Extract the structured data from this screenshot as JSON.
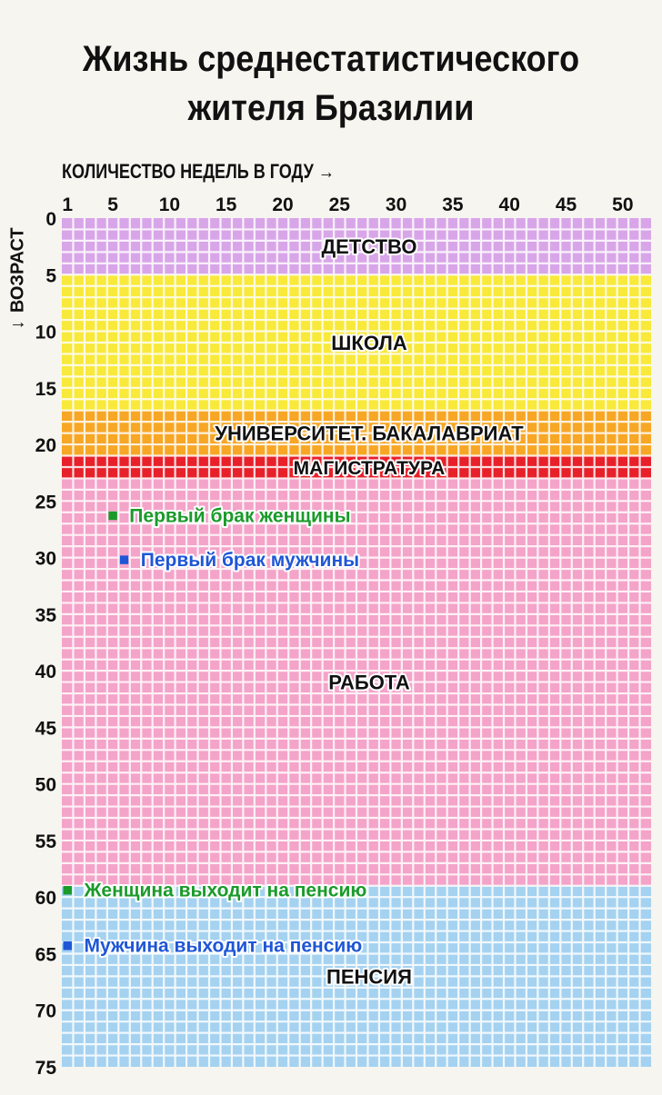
{
  "title_line1": "Жизнь среднестатистического",
  "title_line2": "жителя Бразилии",
  "chart_data": {
    "type": "heatmap",
    "xlabel": "КОЛИЧЕСТВО НЕДЕЛЬ В ГОДУ",
    "xlabel_arrow": "→",
    "ylabel": "ВОЗРАСТ",
    "ylabel_arrow": "←",
    "x_range": [
      1,
      52
    ],
    "y_range": [
      0,
      75
    ],
    "x_ticks": [
      1,
      5,
      10,
      15,
      20,
      25,
      30,
      35,
      40,
      45,
      50
    ],
    "y_ticks": [
      0,
      5,
      10,
      15,
      20,
      25,
      30,
      35,
      40,
      45,
      50,
      55,
      60,
      65,
      70,
      75
    ],
    "periods": [
      {
        "label": "ДЕТСТВО",
        "start_age": 0,
        "end_age": 5,
        "color": "#d8a6e8"
      },
      {
        "label": "ШКОЛА",
        "start_age": 5,
        "end_age": 17,
        "color": "#f8e93a"
      },
      {
        "label": "УНИВЕРСИТЕТ. БАКАЛАВРИАТ",
        "start_age": 17,
        "end_age": 21,
        "color": "#f7a725"
      },
      {
        "label": "МАГИСТРАТУРА",
        "start_age": 21,
        "end_age": 23,
        "color": "#e8202a"
      },
      {
        "label": "РАБОТА",
        "start_age": 23,
        "end_age": 59,
        "color": "#f4a3c9"
      },
      {
        "label": "ПЕНСИЯ",
        "start_age": 59,
        "end_age": 75,
        "color": "#a5d2f0"
      }
    ],
    "events": [
      {
        "label": "Первый брак женщины",
        "age": 26.3,
        "week": 5,
        "color": "#1a9a2a"
      },
      {
        "label": "Первый брак мужчины",
        "age": 30.2,
        "week": 6,
        "color": "#1e56d6"
      },
      {
        "label": "Женщина выходит на пенсию",
        "age": 59.4,
        "week": 1,
        "color": "#1a9a2a"
      },
      {
        "label": "Мужчина выходит на пенсию",
        "age": 64.3,
        "week": 1,
        "color": "#1e56d6"
      }
    ]
  }
}
